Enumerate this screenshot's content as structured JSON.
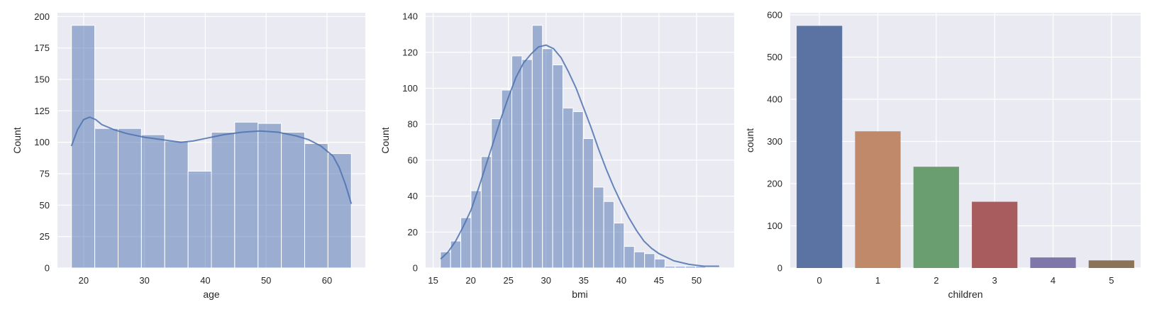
{
  "chart_data": [
    {
      "type": "histogram",
      "xlabel": "age",
      "ylabel": "Count",
      "xlim": [
        15.7,
        66.3
      ],
      "ylim": [
        0,
        203
      ],
      "xticks": [
        20,
        30,
        40,
        50,
        60
      ],
      "yticks": [
        0,
        25,
        50,
        75,
        100,
        125,
        150,
        175,
        200
      ],
      "bins": [
        {
          "x0": 18.0,
          "x1": 21.83,
          "count": 193
        },
        {
          "x0": 21.83,
          "x1": 25.67,
          "count": 111
        },
        {
          "x0": 25.67,
          "x1": 29.5,
          "count": 111
        },
        {
          "x0": 29.5,
          "x1": 33.33,
          "count": 106
        },
        {
          "x0": 33.33,
          "x1": 37.17,
          "count": 101
        },
        {
          "x0": 37.17,
          "x1": 41.0,
          "count": 77
        },
        {
          "x0": 41.0,
          "x1": 44.83,
          "count": 108
        },
        {
          "x0": 44.83,
          "x1": 48.67,
          "count": 116
        },
        {
          "x0": 48.67,
          "x1": 52.5,
          "count": 115
        },
        {
          "x0": 52.5,
          "x1": 56.33,
          "count": 108
        },
        {
          "x0": 56.33,
          "x1": 60.17,
          "count": 99
        },
        {
          "x0": 60.17,
          "x1": 64.0,
          "count": 91
        }
      ],
      "kde": [
        [
          18,
          97
        ],
        [
          19,
          110
        ],
        [
          20,
          118
        ],
        [
          21,
          120
        ],
        [
          22,
          118
        ],
        [
          23,
          114
        ],
        [
          25,
          110
        ],
        [
          27,
          107
        ],
        [
          30,
          104
        ],
        [
          33,
          102
        ],
        [
          36,
          100
        ],
        [
          38,
          101
        ],
        [
          40,
          103
        ],
        [
          43,
          106
        ],
        [
          46,
          108
        ],
        [
          49,
          109
        ],
        [
          52,
          108
        ],
        [
          55,
          105
        ],
        [
          57,
          102
        ],
        [
          59,
          97
        ],
        [
          61,
          89
        ],
        [
          62,
          80
        ],
        [
          63,
          67
        ],
        [
          64,
          51
        ]
      ],
      "bar_color": "#4c72b0"
    },
    {
      "type": "histogram",
      "xlabel": "bmi",
      "ylabel": "Count",
      "xlim": [
        14.0,
        55.0
      ],
      "ylim": [
        0,
        142
      ],
      "xticks": [
        15,
        20,
        25,
        30,
        35,
        40,
        45,
        50
      ],
      "yticks": [
        0,
        20,
        40,
        60,
        80,
        100,
        120,
        140
      ],
      "bin_start": 15.96,
      "bin_width": 1.3565,
      "counts": [
        9,
        15,
        28,
        43,
        62,
        83,
        99,
        118,
        116,
        135,
        122,
        113,
        89,
        87,
        72,
        45,
        37,
        25,
        12,
        9,
        8,
        5,
        1,
        1,
        1,
        1
      ],
      "kde": [
        [
          16,
          5
        ],
        [
          17,
          9
        ],
        [
          18,
          15
        ],
        [
          19,
          23
        ],
        [
          20,
          32
        ],
        [
          21,
          44
        ],
        [
          22,
          57
        ],
        [
          23,
          70
        ],
        [
          24,
          83
        ],
        [
          25,
          95
        ],
        [
          26,
          106
        ],
        [
          27,
          114
        ],
        [
          28,
          119
        ],
        [
          29,
          123
        ],
        [
          30,
          124
        ],
        [
          31,
          122
        ],
        [
          32,
          117
        ],
        [
          33,
          109
        ],
        [
          34,
          100
        ],
        [
          35,
          89
        ],
        [
          36,
          78
        ],
        [
          37,
          66
        ],
        [
          38,
          55
        ],
        [
          39,
          45
        ],
        [
          40,
          36
        ],
        [
          41,
          28
        ],
        [
          42,
          21
        ],
        [
          43,
          15
        ],
        [
          44,
          11
        ],
        [
          45,
          8
        ],
        [
          46,
          6
        ],
        [
          47,
          4
        ],
        [
          48,
          3
        ],
        [
          49,
          2
        ],
        [
          50,
          1.5
        ],
        [
          51,
          1
        ],
        [
          52,
          1
        ],
        [
          53,
          1
        ]
      ],
      "bar_color": "#4c72b0"
    },
    {
      "type": "bar",
      "xlabel": "children",
      "ylabel": "count",
      "categories": [
        "0",
        "1",
        "2",
        "3",
        "4",
        "5"
      ],
      "values": [
        574,
        324,
        240,
        157,
        25,
        18
      ],
      "ylim": [
        0,
        605
      ],
      "yticks": [
        0,
        100,
        200,
        300,
        400,
        500,
        600
      ],
      "colors": [
        "#5b73a2",
        "#c0896a",
        "#6a9d6f",
        "#a85c5e",
        "#7f76aa",
        "#8b7358"
      ]
    }
  ]
}
